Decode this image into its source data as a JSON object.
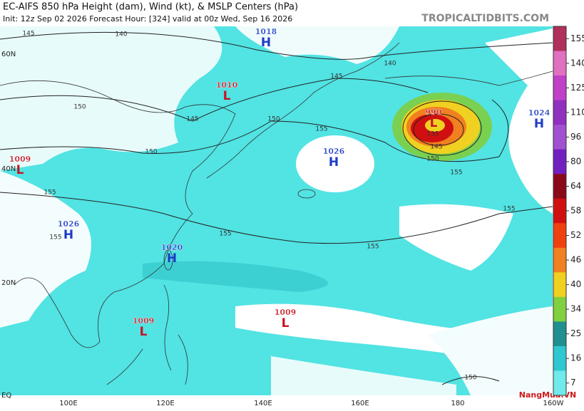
{
  "header": {
    "line1": "EC-AIFS 850 hPa Height (dam), Wind (kt), & MSLP Centers (hPa)",
    "line2": "Init: 12z Sep 02 2026   Forecast Hour: [324]   valid at 00z Wed, Sep 16 2026"
  },
  "watermark": "TROPICALTIDBITS.COM",
  "corner_logo": "NangMua.VN",
  "lat_labels": [
    "60N",
    "40N",
    "20N",
    "EQ"
  ],
  "lon_labels": [
    "100E",
    "120E",
    "140E",
    "160E",
    "180",
    "160W"
  ],
  "centers": [
    {
      "symbol": "H",
      "pressure": 1018
    },
    {
      "symbol": "L",
      "pressure": 1010
    },
    {
      "symbol": "L",
      "pressure": 1009
    },
    {
      "symbol": "L",
      "pressure": 990
    },
    {
      "symbol": "H",
      "pressure": 1024
    },
    {
      "symbol": "H",
      "pressure": 1026
    },
    {
      "symbol": "H",
      "pressure": 1026
    },
    {
      "symbol": "H",
      "pressure": 1020
    },
    {
      "symbol": "L",
      "pressure": 1009
    },
    {
      "symbol": "L",
      "pressure": 1009
    }
  ],
  "contour_labels": [
    145,
    140,
    140,
    145,
    150,
    150,
    145,
    155,
    150,
    155,
    155,
    155,
    155,
    155,
    155,
    135,
    145,
    150,
    150
  ],
  "colorbar": {
    "ticks": [
      155,
      140,
      125,
      110,
      96,
      80,
      64,
      58,
      52,
      46,
      40,
      34,
      25,
      16,
      7
    ],
    "colors": [
      "#b0305a",
      "#e070c0",
      "#c040c8",
      "#9030c0",
      "#a050d0",
      "#7020c0",
      "#8a0a1a",
      "#d01010",
      "#f04010",
      "#f08020",
      "#f0d020",
      "#80d040",
      "#209090",
      "#30c8d0",
      "#70eaea"
    ]
  }
}
